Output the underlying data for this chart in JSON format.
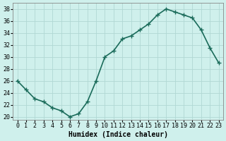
{
  "x": [
    0,
    1,
    2,
    3,
    4,
    5,
    6,
    7,
    8,
    9,
    10,
    11,
    12,
    13,
    14,
    15,
    16,
    17,
    18,
    19,
    20,
    21,
    22,
    23
  ],
  "y": [
    26,
    24.5,
    23,
    22.5,
    21.5,
    21,
    20,
    20.5,
    22.5,
    26,
    30,
    31,
    33,
    33.5,
    34.5,
    35.5,
    37,
    38,
    37.5,
    37,
    36.5,
    34.5,
    31.5,
    29
  ],
  "line_color": "#1a6b5a",
  "marker": "+",
  "bg_color": "#cff0ec",
  "grid_color": "#b0d8d4",
  "xlabel": "Humidex (Indice chaleur)",
  "ylim": [
    19.5,
    39
  ],
  "yticks": [
    20,
    22,
    24,
    26,
    28,
    30,
    32,
    34,
    36,
    38
  ],
  "xlim": [
    -0.5,
    23.5
  ],
  "label_fontsize": 7,
  "tick_fontsize": 6,
  "line_width": 1.2,
  "marker_size": 4
}
